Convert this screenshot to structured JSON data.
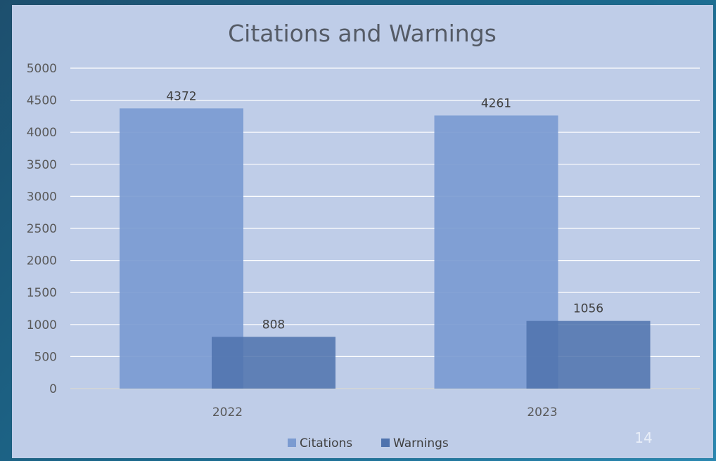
{
  "slide": {
    "page_number": "14"
  },
  "chart_data": {
    "type": "bar",
    "title": "Citations and Warnings",
    "xlabel": "",
    "ylabel": "",
    "categories": [
      "2022",
      "2023"
    ],
    "series": [
      {
        "name": "Citations",
        "values": [
          4372,
          4261
        ],
        "color": "#7b9bd1"
      },
      {
        "name": "Warnings",
        "values": [
          808,
          1056
        ],
        "color": "#4f73ae"
      }
    ],
    "ylim": [
      0,
      5000
    ],
    "yticks": [
      "0",
      "500",
      "1000",
      "1500",
      "2000",
      "2500",
      "3000",
      "3500",
      "4000",
      "4500",
      "5000"
    ],
    "data_labels": [
      "4372",
      "808",
      "4261",
      "1056"
    ],
    "grid": true,
    "legend_position": "bottom"
  }
}
